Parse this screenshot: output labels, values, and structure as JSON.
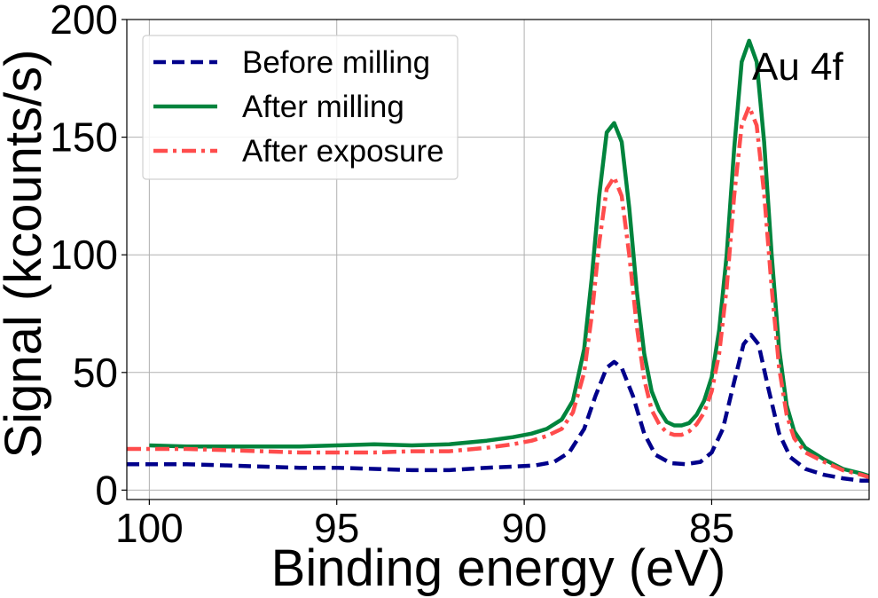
{
  "chart_data": {
    "type": "line",
    "title": "",
    "xlabel": "Binding energy (eV)",
    "ylabel": "Signal (kcounts/s)",
    "xlim": [
      100.6,
      80.8
    ],
    "ylim": [
      -4,
      200
    ],
    "x_inverted": true,
    "grid": true,
    "legend_position": "top-left",
    "xticks": [
      100,
      95,
      90,
      85
    ],
    "yticks": [
      0,
      50,
      100,
      150,
      200
    ],
    "annotation": "Au 4f",
    "series": [
      {
        "name": "Before milling",
        "color": "#00008b",
        "dash": "dashed",
        "points": [
          [
            100.6,
            11
          ],
          [
            99,
            11
          ],
          [
            98,
            10.5
          ],
          [
            97,
            10
          ],
          [
            96,
            9.5
          ],
          [
            95,
            9.5
          ],
          [
            94,
            9
          ],
          [
            93,
            8.5
          ],
          [
            92,
            8.5
          ],
          [
            91,
            9.5
          ],
          [
            90.3,
            10
          ],
          [
            89.7,
            10.5
          ],
          [
            89.2,
            12
          ],
          [
            88.8,
            16
          ],
          [
            88.4,
            26
          ],
          [
            88.1,
            40
          ],
          [
            87.8,
            52
          ],
          [
            87.6,
            54.5
          ],
          [
            87.4,
            52
          ],
          [
            87.1,
            40
          ],
          [
            86.8,
            24
          ],
          [
            86.5,
            15
          ],
          [
            86.1,
            11.5
          ],
          [
            85.7,
            11
          ],
          [
            85.3,
            12
          ],
          [
            85,
            16
          ],
          [
            84.7,
            26
          ],
          [
            84.4,
            46
          ],
          [
            84.15,
            62
          ],
          [
            83.95,
            66
          ],
          [
            83.75,
            62
          ],
          [
            83.5,
            44
          ],
          [
            83.2,
            24
          ],
          [
            82.9,
            14
          ],
          [
            82.5,
            9
          ],
          [
            82,
            6.5
          ],
          [
            81.5,
            5
          ],
          [
            81,
            4
          ],
          [
            80.8,
            4
          ]
        ]
      },
      {
        "name": "After milling",
        "color": "#00843d",
        "dash": "solid",
        "points": [
          [
            100,
            19
          ],
          [
            99,
            18.5
          ],
          [
            98,
            18.5
          ],
          [
            97,
            18.5
          ],
          [
            96,
            18.5
          ],
          [
            95,
            19
          ],
          [
            94,
            19.5
          ],
          [
            93,
            19
          ],
          [
            92,
            19.5
          ],
          [
            91,
            21
          ],
          [
            90.3,
            22.5
          ],
          [
            89.8,
            24
          ],
          [
            89.4,
            26
          ],
          [
            89,
            30
          ],
          [
            88.7,
            38
          ],
          [
            88.4,
            60
          ],
          [
            88.2,
            90
          ],
          [
            88,
            125
          ],
          [
            87.8,
            152
          ],
          [
            87.6,
            156
          ],
          [
            87.4,
            148
          ],
          [
            87.2,
            120
          ],
          [
            87,
            85
          ],
          [
            86.8,
            58
          ],
          [
            86.6,
            42
          ],
          [
            86.4,
            34
          ],
          [
            86.2,
            29
          ],
          [
            86,
            27.5
          ],
          [
            85.8,
            27.5
          ],
          [
            85.6,
            28.5
          ],
          [
            85.4,
            32
          ],
          [
            85.2,
            38
          ],
          [
            85,
            48
          ],
          [
            84.8,
            68
          ],
          [
            84.6,
            100
          ],
          [
            84.4,
            145
          ],
          [
            84.2,
            182
          ],
          [
            84.0,
            191
          ],
          [
            83.8,
            182
          ],
          [
            83.6,
            148
          ],
          [
            83.4,
            100
          ],
          [
            83.2,
            60
          ],
          [
            83,
            36
          ],
          [
            82.8,
            25
          ],
          [
            82.5,
            18
          ],
          [
            82,
            13
          ],
          [
            81.5,
            9
          ],
          [
            81,
            7
          ],
          [
            80.8,
            6
          ]
        ]
      },
      {
        "name": "After exposure",
        "color": "#ff4c4c",
        "dash": "dashdot",
        "points": [
          [
            100.6,
            17.5
          ],
          [
            99,
            17.5
          ],
          [
            98,
            17
          ],
          [
            97,
            16.5
          ],
          [
            96,
            16
          ],
          [
            95,
            16
          ],
          [
            94,
            16
          ],
          [
            93,
            16.5
          ],
          [
            92,
            16.5
          ],
          [
            91,
            18
          ],
          [
            90.3,
            19.5
          ],
          [
            89.8,
            21
          ],
          [
            89.4,
            23
          ],
          [
            89,
            26
          ],
          [
            88.7,
            33
          ],
          [
            88.4,
            50
          ],
          [
            88.2,
            74
          ],
          [
            88,
            105
          ],
          [
            87.8,
            128
          ],
          [
            87.6,
            133
          ],
          [
            87.4,
            125
          ],
          [
            87.2,
            100
          ],
          [
            87,
            70
          ],
          [
            86.8,
            47
          ],
          [
            86.6,
            34
          ],
          [
            86.4,
            28
          ],
          [
            86.2,
            24.5
          ],
          [
            86,
            23.5
          ],
          [
            85.8,
            23.5
          ],
          [
            85.6,
            25
          ],
          [
            85.4,
            28
          ],
          [
            85.2,
            33
          ],
          [
            85,
            42
          ],
          [
            84.8,
            58
          ],
          [
            84.6,
            86
          ],
          [
            84.4,
            125
          ],
          [
            84.2,
            155
          ],
          [
            84.0,
            163
          ],
          [
            83.8,
            155
          ],
          [
            83.6,
            126
          ],
          [
            83.4,
            86
          ],
          [
            83.2,
            52
          ],
          [
            83,
            32
          ],
          [
            82.8,
            22
          ],
          [
            82.5,
            16
          ],
          [
            82,
            12
          ],
          [
            81.5,
            8.5
          ],
          [
            81,
            6.5
          ],
          [
            80.8,
            5.5
          ]
        ]
      }
    ]
  }
}
